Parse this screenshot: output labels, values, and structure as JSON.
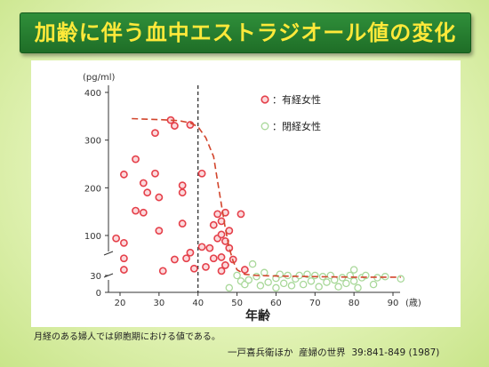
{
  "title": "加齢に伴う血中エストラジオール値の変化",
  "note": "月経のある婦人では卵胞期における値である。",
  "source": "一戸喜兵衛ほか  産婦の世界  39:841-849 (1987)",
  "colors": {
    "menstruating": "#e5404a",
    "menopausal": "#a9d89a",
    "trend": "#d2452c",
    "title_text": "#ffe93a",
    "title_bg": "#2f8f3a"
  },
  "chart_data": {
    "type": "scatter",
    "ylabel": "(pg/ml)",
    "xlabel": "年齢",
    "xunit": "(歳)",
    "xlim": [
      17,
      96
    ],
    "ylim": [
      0,
      400
    ],
    "scale_break": {
      "from": 30,
      "to": 100
    },
    "x_ticks": [
      20,
      30,
      40,
      50,
      60,
      70,
      80,
      90
    ],
    "x_tick_labels": [
      "20",
      "30",
      "40",
      "50",
      "60",
      "70",
      "80",
      "90"
    ],
    "y_ticks": [
      0,
      30,
      100,
      200,
      300,
      400
    ],
    "y_tick_labels": [
      "0",
      "30",
      "100",
      "200",
      "300",
      "400"
    ],
    "grid": false,
    "legend_position": "top-right",
    "menopause_line_x": 40,
    "series": [
      {
        "name": "：有経女性",
        "color": "#e5404a",
        "points": [
          [
            19,
            95
          ],
          [
            21,
            228
          ],
          [
            21,
            87
          ],
          [
            21,
            60
          ],
          [
            21,
            40
          ],
          [
            24,
            260
          ],
          [
            24,
            152
          ],
          [
            26,
            210
          ],
          [
            26,
            148
          ],
          [
            27,
            190
          ],
          [
            29,
            315
          ],
          [
            29,
            230
          ],
          [
            30,
            110
          ],
          [
            30,
            180
          ],
          [
            31,
            38
          ],
          [
            33,
            342
          ],
          [
            34,
            330
          ],
          [
            34,
            58
          ],
          [
            36,
            205
          ],
          [
            36,
            190
          ],
          [
            36,
            125
          ],
          [
            37,
            60
          ],
          [
            38,
            332
          ],
          [
            38,
            70
          ],
          [
            39,
            42
          ],
          [
            41,
            230
          ],
          [
            41,
            80
          ],
          [
            42,
            45
          ],
          [
            43,
            78
          ],
          [
            44,
            122
          ],
          [
            44,
            60
          ],
          [
            45,
            145
          ],
          [
            45,
            95
          ],
          [
            46,
            102
          ],
          [
            46,
            130
          ],
          [
            46,
            62
          ],
          [
            46,
            38
          ],
          [
            47,
            148
          ],
          [
            47,
            90
          ],
          [
            47,
            48
          ],
          [
            48,
            110
          ],
          [
            48,
            78
          ],
          [
            49,
            58
          ],
          [
            51,
            145
          ],
          [
            52,
            40
          ]
        ]
      },
      {
        "name": "：閉経女性",
        "color": "#a9d89a",
        "points": [
          [
            48,
            8
          ],
          [
            50,
            30
          ],
          [
            51,
            20
          ],
          [
            52,
            14
          ],
          [
            53,
            22
          ],
          [
            54,
            50
          ],
          [
            55,
            28
          ],
          [
            56,
            12
          ],
          [
            57,
            35
          ],
          [
            58,
            18
          ],
          [
            60,
            25
          ],
          [
            60,
            8
          ],
          [
            61,
            32
          ],
          [
            62,
            16
          ],
          [
            63,
            30
          ],
          [
            64,
            12
          ],
          [
            65,
            24
          ],
          [
            66,
            30
          ],
          [
            67,
            14
          ],
          [
            68,
            32
          ],
          [
            69,
            20
          ],
          [
            70,
            30
          ],
          [
            71,
            10
          ],
          [
            72,
            28
          ],
          [
            73,
            18
          ],
          [
            74,
            30
          ],
          [
            75,
            22
          ],
          [
            76,
            10
          ],
          [
            77,
            26
          ],
          [
            78,
            16
          ],
          [
            79,
            30
          ],
          [
            80,
            40
          ],
          [
            80,
            20
          ],
          [
            81,
            8
          ],
          [
            82,
            26
          ],
          [
            83,
            30
          ],
          [
            85,
            14
          ],
          [
            86,
            26
          ],
          [
            88,
            28
          ],
          [
            92,
            24
          ]
        ]
      },
      {
        "name": "",
        "type": "line",
        "style": "dashed",
        "color": "#d2452c",
        "points": [
          [
            23,
            345
          ],
          [
            30,
            343
          ],
          [
            35,
            341
          ],
          [
            38,
            336
          ],
          [
            40,
            328
          ],
          [
            42,
            305
          ],
          [
            44,
            265
          ],
          [
            45,
            215
          ],
          [
            46,
            165
          ],
          [
            47,
            115
          ],
          [
            48,
            78
          ],
          [
            49,
            55
          ],
          [
            50,
            40
          ],
          [
            52,
            32
          ],
          [
            55,
            30
          ],
          [
            60,
            29
          ],
          [
            70,
            28
          ],
          [
            80,
            27
          ],
          [
            92,
            27
          ]
        ]
      }
    ]
  }
}
